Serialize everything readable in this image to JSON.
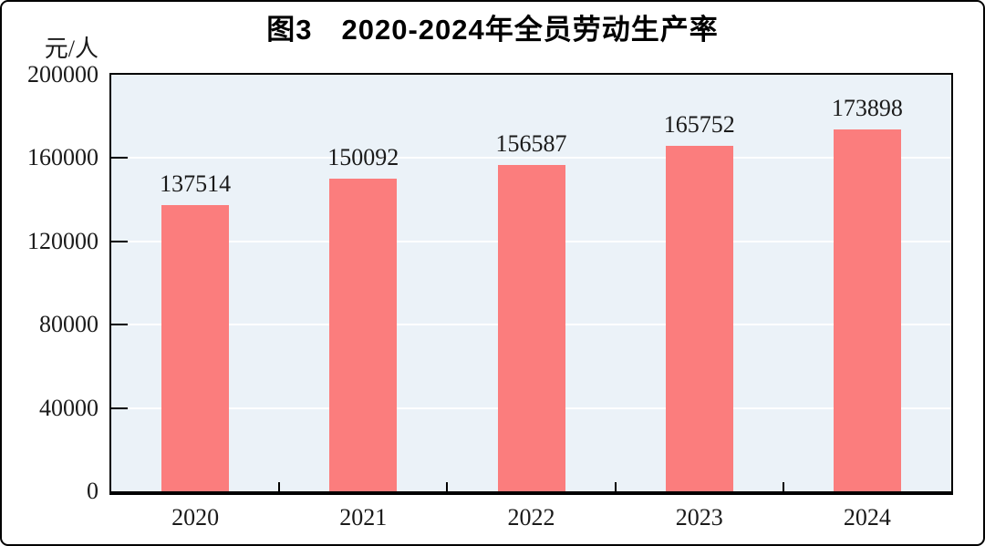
{
  "chart_data": {
    "type": "bar",
    "title": "图3　2020-2024年全员劳动生产率",
    "unit_label": "元/人",
    "categories": [
      "2020",
      "2021",
      "2022",
      "2023",
      "2024"
    ],
    "values": [
      137514,
      150092,
      156587,
      165752,
      173898
    ],
    "value_labels": [
      "137514",
      "150092",
      "156587",
      "165752",
      "173898"
    ],
    "xlabel": "",
    "ylabel": "元/人",
    "ylim": [
      0,
      200000
    ],
    "ytick_step": 40000,
    "ytick_labels": [
      "0",
      "40000",
      "80000",
      "120000",
      "160000",
      "200000"
    ],
    "grid": "horizontal white gridlines behind bars",
    "legend": "none",
    "colors": {
      "bar_fill": "#FB7D7D",
      "plot_background": "#EBF2F8",
      "gridline": "#FFFFFF",
      "axis_border": "#000000",
      "text": "#1A1A1A",
      "frame_border": "#000000",
      "page_background": "#FFFFFF"
    }
  }
}
